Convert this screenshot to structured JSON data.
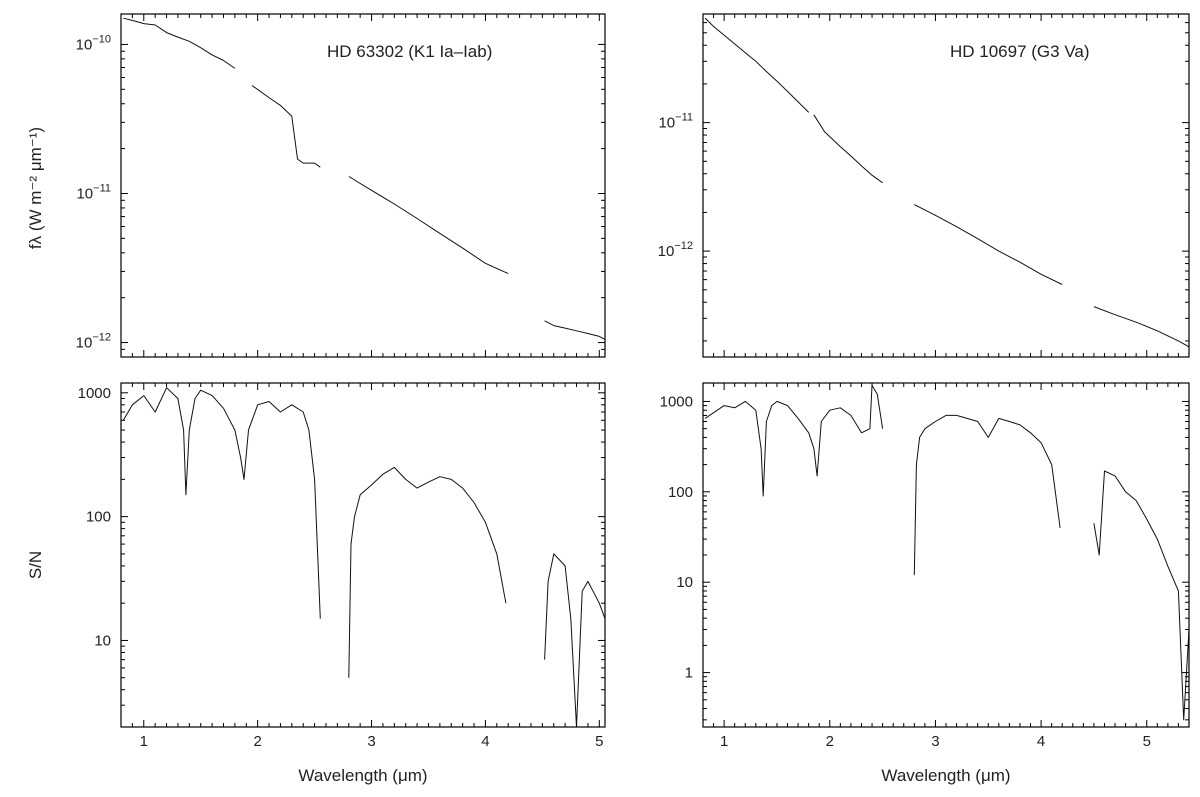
{
  "chart_data": [
    {
      "type": "line",
      "title": "HD 63302 (K1 Ia–Iab)",
      "ylabel": "fλ (W m⁻² μm⁻¹)",
      "xlabel": "",
      "xlim": [
        0.8,
        5.05
      ],
      "ylim": [
        8e-13,
        1.6e-10
      ],
      "yscale": "log",
      "x_ticks": [
        1,
        2,
        3,
        4,
        5
      ],
      "x_tick_labels": [
        "",
        "",
        "",
        "",
        ""
      ],
      "y_ticks": [
        1e-12,
        1e-11,
        1e-10
      ],
      "y_tick_labels": [
        {
          "base": "10",
          "exp": "−12"
        },
        {
          "base": "10",
          "exp": "−11"
        },
        {
          "base": "10",
          "exp": "−10"
        }
      ],
      "grid": false,
      "series": [
        {
          "x": [
            0.82,
            0.9,
            1.0,
            1.1,
            1.2,
            1.3,
            1.4,
            1.5,
            1.6,
            1.7,
            1.8
          ],
          "y": [
            1.5e-10,
            1.45e-10,
            1.38e-10,
            1.35e-10,
            1.2e-10,
            1.12e-10,
            1.05e-10,
            9.5e-11,
            8.5e-11,
            7.8e-11,
            6.9e-11
          ]
        },
        {
          "x": [
            1.95,
            2.1,
            2.2,
            2.3,
            2.35,
            2.4,
            2.5,
            2.55
          ],
          "y": [
            5.3e-11,
            4.4e-11,
            3.9e-11,
            3.3e-11,
            1.7e-11,
            1.6e-11,
            1.6e-11,
            1.5e-11
          ]
        },
        {
          "x": [
            2.8,
            3.0,
            3.2,
            3.4,
            3.6,
            3.8,
            4.0,
            4.2
          ],
          "y": [
            1.3e-11,
            1.05e-11,
            8.5e-12,
            6.8e-12,
            5.4e-12,
            4.3e-12,
            3.4e-12,
            2.9e-12
          ]
        },
        {
          "x": [
            4.52,
            4.6,
            4.7,
            4.8,
            4.9,
            5.0,
            5.05
          ],
          "y": [
            1.4e-12,
            1.3e-12,
            1.25e-12,
            1.2e-12,
            1.15e-12,
            1.1e-12,
            1.05e-12
          ]
        }
      ]
    },
    {
      "type": "line",
      "title": "HD 10697 (G3 Va)",
      "ylabel": "",
      "xlabel": "",
      "xlim": [
        0.8,
        5.4
      ],
      "ylim": [
        1.5e-13,
        7e-11
      ],
      "yscale": "log",
      "x_ticks": [
        1,
        2,
        3,
        4,
        5
      ],
      "x_tick_labels": [
        "",
        "",
        "",
        "",
        ""
      ],
      "y_ticks": [
        1e-12,
        1e-11
      ],
      "y_tick_labels": [
        {
          "base": "10",
          "exp": "−12"
        },
        {
          "base": "10",
          "exp": "−11"
        }
      ],
      "grid": false,
      "series": [
        {
          "x": [
            0.82,
            0.9,
            1.0,
            1.1,
            1.2,
            1.3,
            1.4,
            1.5,
            1.6,
            1.7,
            1.8
          ],
          "y": [
            6.5e-11,
            5.6e-11,
            4.8e-11,
            4.1e-11,
            3.5e-11,
            3e-11,
            2.5e-11,
            2.1e-11,
            1.75e-11,
            1.45e-11,
            1.2e-11
          ]
        },
        {
          "x": [
            1.85,
            1.95,
            2.1,
            2.2,
            2.3,
            2.4,
            2.5
          ],
          "y": [
            1.15e-11,
            8.5e-12,
            6.5e-12,
            5.5e-12,
            4.6e-12,
            3.9e-12,
            3.4e-12
          ]
        },
        {
          "x": [
            2.8,
            3.0,
            3.2,
            3.4,
            3.6,
            3.8,
            4.0,
            4.2
          ],
          "y": [
            2.3e-12,
            1.9e-12,
            1.55e-12,
            1.25e-12,
            1e-12,
            8.2e-13,
            6.6e-13,
            5.5e-13
          ]
        },
        {
          "x": [
            4.5,
            4.7,
            4.9,
            5.1,
            5.3,
            5.4
          ],
          "y": [
            3.7e-13,
            3.2e-13,
            2.8e-13,
            2.4e-13,
            2e-13,
            1.8e-13
          ]
        }
      ]
    },
    {
      "type": "line",
      "title": "",
      "ylabel": "S/N",
      "xlabel": "Wavelength (μm)",
      "xlim": [
        0.8,
        5.05
      ],
      "ylim": [
        2,
        1200
      ],
      "yscale": "log",
      "x_ticks": [
        1,
        2,
        3,
        4,
        5
      ],
      "x_tick_labels": [
        "1",
        "2",
        "3",
        "4",
        "5"
      ],
      "y_ticks": [
        10,
        100,
        1000
      ],
      "y_tick_labels": [
        {
          "base": "10",
          "exp": ""
        },
        {
          "base": "100",
          "exp": ""
        },
        {
          "base": "1000",
          "exp": ""
        }
      ],
      "grid": false,
      "series": [
        {
          "x": [
            0.82,
            0.9,
            1.0,
            1.1,
            1.2,
            1.3,
            1.35,
            1.37,
            1.4,
            1.45,
            1.5,
            1.6,
            1.7,
            1.8,
            1.85,
            1.88,
            1.92,
            2.0,
            2.1,
            2.2,
            2.3,
            2.4,
            2.45,
            2.5,
            2.55
          ],
          "y": [
            600,
            800,
            950,
            700,
            1100,
            900,
            500,
            150,
            500,
            900,
            1050,
            950,
            750,
            500,
            300,
            200,
            500,
            800,
            850,
            700,
            800,
            700,
            500,
            200,
            15
          ]
        },
        {
          "x": [
            2.8,
            2.82,
            2.85,
            2.9,
            3.0,
            3.1,
            3.2,
            3.3,
            3.4,
            3.5,
            3.6,
            3.7,
            3.8,
            3.9,
            4.0,
            4.1,
            4.18
          ],
          "y": [
            5,
            60,
            100,
            150,
            180,
            220,
            250,
            200,
            170,
            190,
            210,
            200,
            170,
            130,
            90,
            50,
            20
          ]
        },
        {
          "x": [
            4.52,
            4.55,
            4.6,
            4.7,
            4.75,
            4.8,
            4.85,
            4.9,
            5.0,
            5.05
          ],
          "y": [
            7,
            30,
            50,
            40,
            15,
            2,
            25,
            30,
            20,
            15
          ]
        }
      ]
    },
    {
      "type": "line",
      "title": "",
      "ylabel": "",
      "xlabel": "Wavelength (μm)",
      "xlim": [
        0.8,
        5.4
      ],
      "ylim": [
        0.25,
        1600
      ],
      "yscale": "log",
      "x_ticks": [
        1,
        2,
        3,
        4,
        5
      ],
      "x_tick_labels": [
        "1",
        "2",
        "3",
        "4",
        "5"
      ],
      "y_ticks": [
        1,
        10,
        100,
        1000
      ],
      "y_tick_labels": [
        {
          "base": "1",
          "exp": ""
        },
        {
          "base": "10",
          "exp": ""
        },
        {
          "base": "100",
          "exp": ""
        },
        {
          "base": "1000",
          "exp": ""
        }
      ],
      "grid": false,
      "series": [
        {
          "x": [
            0.82,
            0.9,
            1.0,
            1.1,
            1.2,
            1.3,
            1.35,
            1.37,
            1.4,
            1.45,
            1.5,
            1.6,
            1.7,
            1.8,
            1.85,
            1.88,
            1.92,
            2.0,
            2.1,
            2.2,
            2.3,
            2.38,
            2.4,
            2.45,
            2.5
          ],
          "y": [
            650,
            750,
            900,
            850,
            1000,
            800,
            300,
            90,
            600,
            900,
            1000,
            900,
            650,
            450,
            300,
            150,
            600,
            800,
            850,
            700,
            450,
            500,
            1500,
            1200,
            500
          ]
        },
        {
          "x": [
            2.8,
            2.82,
            2.85,
            2.9,
            3.0,
            3.1,
            3.2,
            3.3,
            3.4,
            3.5,
            3.6,
            3.7,
            3.8,
            3.9,
            4.0,
            4.1,
            4.18
          ],
          "y": [
            12,
            200,
            400,
            500,
            600,
            700,
            700,
            650,
            600,
            400,
            650,
            600,
            550,
            450,
            350,
            200,
            40
          ]
        },
        {
          "x": [
            4.5,
            4.55,
            4.6,
            4.7,
            4.8,
            4.9,
            5.0,
            5.1,
            5.2,
            5.3,
            5.35,
            5.4
          ],
          "y": [
            45,
            20,
            170,
            150,
            100,
            80,
            50,
            30,
            15,
            8,
            0.3,
            3
          ]
        }
      ]
    }
  ],
  "panels": [
    {
      "title": "HD 63302 (K1 Ia–Iab)",
      "ylabel": "fλ (W m⁻² μm⁻¹)",
      "xlabel": ""
    },
    {
      "title": "HD 10697 (G3 Va)",
      "ylabel": "",
      "xlabel": ""
    },
    {
      "title": "",
      "ylabel": "S/N",
      "xlabel": "Wavelength (μm)"
    },
    {
      "title": "",
      "ylabel": "",
      "xlabel": "Wavelength (μm)"
    }
  ]
}
